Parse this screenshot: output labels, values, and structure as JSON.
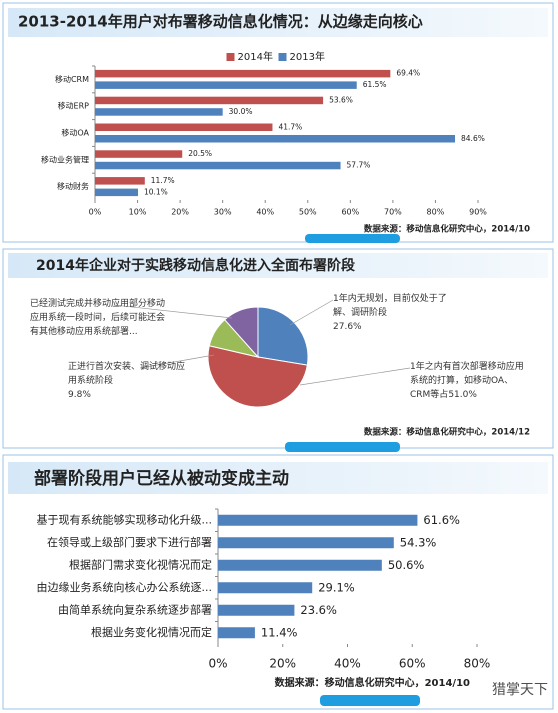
{
  "chart_data": [
    {
      "type": "bar",
      "title": "2013-2014年用户对布署移动信息化情况：从边缘走向核心",
      "legend_position": "top",
      "categories": [
        "移动CRM",
        "移动ERP",
        "移动OA",
        "移动业务管理",
        "移动财务"
      ],
      "series": [
        {
          "name": "2014年",
          "color": "#c0504d",
          "values": [
            69.4,
            53.6,
            41.7,
            20.5,
            11.7
          ],
          "value_labels": [
            "69.4%",
            "53.6%",
            "41.7%",
            "20.5%",
            "11.7%"
          ]
        },
        {
          "name": "2013年",
          "color": "#4f81bd",
          "values": [
            61.5,
            30.0,
            84.6,
            57.7,
            10.1
          ],
          "value_labels": [
            "61.5%",
            "30.0%",
            "84.6%",
            "57.7%",
            "10.1%"
          ]
        }
      ],
      "xlim": [
        0,
        90
      ],
      "xticks": [
        {
          "value": 0,
          "label": "0%"
        },
        {
          "value": 10,
          "label": "10%"
        },
        {
          "value": 20,
          "label": "20%"
        },
        {
          "value": 30,
          "label": "30%"
        },
        {
          "value": 40,
          "label": "40%"
        },
        {
          "value": 50,
          "label": "50%"
        },
        {
          "value": 60,
          "label": "60%"
        },
        {
          "value": 70,
          "label": "70%"
        },
        {
          "value": 80,
          "label": "80%"
        },
        {
          "value": 90,
          "label": "90%"
        }
      ],
      "source": "数据来源：移动信息化研究中心，2014/10"
    },
    {
      "type": "pie",
      "title": "2014年企业对于实践移动信息化进入全面布署阶段",
      "categories": [
        "1年内无规划，目前仅处于了解、调研阶段",
        "1年之内有首次部署移动应用系统的打算，如移动OA、CRM等占",
        "正进行首次安装、调试移动应用系统阶段",
        "已经测试完成并移动应用部分移动应用系统一段时间，后续可能还会有其他移动应用系统部署..."
      ],
      "values": [
        27.6,
        51.0,
        9.8,
        11.6
      ],
      "value_labels": [
        "27.6%",
        "51.0%",
        "9.8%",
        null
      ],
      "colors": [
        "#4f81bd",
        "#c0504d",
        "#9bbb59",
        "#8064a2"
      ],
      "source": "数据来源：移动信息化研究中心，2014/12"
    },
    {
      "type": "bar",
      "title": "部署阶段用户已经从被动变成主动",
      "categories": [
        "基于现有系统能够实现移动化升级...",
        "在领导或上级部门要求下进行部署",
        "根据部门需求变化视情况而定",
        "由边缘业务系统向核心办公系统逐...",
        "由简单系统向复杂系统逐步部署",
        "根据业务变化视情况而定"
      ],
      "values": [
        61.6,
        54.3,
        50.6,
        29.1,
        23.6,
        11.4
      ],
      "value_labels": [
        "61.6%",
        "54.3%",
        "50.6%",
        "29.1%",
        "23.6%",
        "11.4%"
      ],
      "color": "#4f81bd",
      "xlim": [
        0,
        80
      ],
      "xticks": [
        {
          "value": 0,
          "label": "0%"
        },
        {
          "value": 20,
          "label": "20%"
        },
        {
          "value": 40,
          "label": "40%"
        },
        {
          "value": 60,
          "label": "60%"
        },
        {
          "value": 80,
          "label": "80%"
        }
      ],
      "source": "数据来源：移动信息化研究中心，2014/10",
      "watermark": "猎掌天下"
    }
  ]
}
